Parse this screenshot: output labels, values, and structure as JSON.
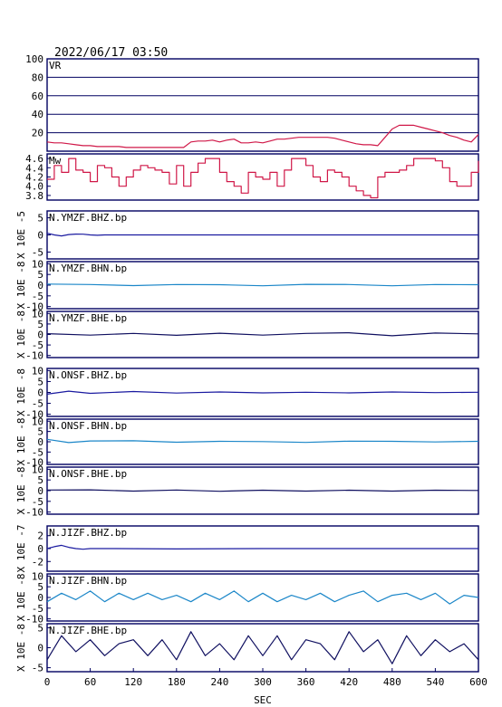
{
  "header": {
    "timestamp": "2022/06/17 03:50"
  },
  "xaxis": {
    "label": "SEC",
    "range": [
      0,
      600
    ],
    "ticks": [
      "0",
      "60",
      "120",
      "180",
      "240",
      "300",
      "360",
      "420",
      "480",
      "540",
      "600"
    ]
  },
  "colors": {
    "vr": "#d01848",
    "mw": "#d01848",
    "z": "#1a1aa0",
    "h": "#1a86c8",
    "e": "#101060",
    "frame": "#000060"
  },
  "chart_data": [
    {
      "type": "line",
      "panel_id": "vr",
      "panel_label": "VR",
      "ylim": [
        0,
        100
      ],
      "yticks": [
        "100",
        "80",
        "60",
        "40",
        "20"
      ],
      "grid": true,
      "series": [
        {
          "color_key": "vr",
          "x": [
            0,
            10,
            20,
            30,
            40,
            50,
            60,
            70,
            80,
            90,
            100,
            110,
            120,
            130,
            140,
            150,
            160,
            170,
            180,
            190,
            200,
            210,
            220,
            230,
            240,
            250,
            260,
            270,
            280,
            290,
            300,
            310,
            320,
            330,
            340,
            350,
            360,
            370,
            380,
            390,
            400,
            410,
            420,
            430,
            440,
            450,
            460,
            470,
            480,
            490,
            500,
            510,
            520,
            530,
            540,
            550,
            560,
            570,
            580,
            590,
            600
          ],
          "values": [
            10,
            9,
            9,
            8,
            7,
            6,
            6,
            5,
            5,
            5,
            5,
            4,
            4,
            4,
            4,
            4,
            4,
            4,
            4,
            4,
            10,
            11,
            11,
            12,
            10,
            12,
            13,
            9,
            9,
            10,
            9,
            11,
            13,
            13,
            14,
            15,
            15,
            15,
            15,
            15,
            14,
            12,
            10,
            8,
            7,
            7,
            6,
            15,
            24,
            28,
            28,
            28,
            26,
            24,
            22,
            20,
            17,
            15,
            12,
            10,
            18
          ]
        }
      ]
    },
    {
      "type": "line",
      "panel_id": "mw",
      "panel_label": "Mw",
      "ylim": [
        3.7,
        4.7
      ],
      "yticks": [
        "4.6",
        "4.4",
        "4.2",
        "4.0",
        "3.8"
      ],
      "grid": false,
      "series": [
        {
          "color_key": "mw",
          "x": [
            0,
            10,
            20,
            30,
            40,
            50,
            60,
            70,
            80,
            90,
            100,
            110,
            120,
            130,
            140,
            150,
            160,
            170,
            180,
            190,
            200,
            210,
            220,
            230,
            240,
            250,
            260,
            270,
            280,
            290,
            300,
            310,
            320,
            330,
            340,
            350,
            360,
            370,
            380,
            390,
            400,
            410,
            420,
            430,
            440,
            450,
            460,
            470,
            480,
            490,
            500,
            510,
            520,
            530,
            540,
            550,
            560,
            570,
            580,
            590,
            600
          ],
          "values": [
            4.15,
            4.45,
            4.3,
            4.6,
            4.35,
            4.3,
            4.1,
            4.45,
            4.4,
            4.2,
            4.0,
            4.2,
            4.35,
            4.45,
            4.4,
            4.35,
            4.3,
            4.05,
            4.45,
            4.0,
            4.3,
            4.5,
            4.6,
            4.6,
            4.3,
            4.1,
            4.0,
            3.85,
            4.3,
            4.2,
            4.15,
            4.3,
            4.0,
            4.35,
            4.6,
            4.6,
            4.45,
            4.2,
            4.1,
            4.35,
            4.3,
            4.2,
            4.0,
            3.9,
            3.8,
            3.75,
            4.2,
            4.3,
            4.3,
            4.35,
            4.45,
            4.6,
            4.6,
            4.6,
            4.55,
            4.4,
            4.1,
            4.0,
            4.0,
            4.3,
            4.55
          ]
        }
      ]
    },
    {
      "type": "line",
      "panel_id": "ymzf-bhz",
      "panel_label": "N.YMZF.BHZ.bp",
      "ylabel": "X 10E -5",
      "ylim": [
        -7,
        7
      ],
      "yticks": [
        "5",
        "0",
        "-5"
      ],
      "series": [
        {
          "color_key": "z",
          "x": [
            0,
            10,
            20,
            30,
            40,
            50,
            60,
            70,
            80,
            90,
            100,
            200,
            300,
            400,
            500,
            600
          ],
          "values": [
            0.5,
            0.0,
            -0.3,
            0.1,
            0.25,
            0.2,
            0.0,
            -0.1,
            0.0,
            0.0,
            0.0,
            0.0,
            0.0,
            0.0,
            0.0,
            0.0
          ]
        }
      ]
    },
    {
      "type": "line",
      "panel_id": "ymzf-bhn",
      "panel_label": "N.YMZF.BHN.bp",
      "ylabel": "X 10E -8",
      "ylim": [
        -11,
        11
      ],
      "yticks": [
        "10",
        "5",
        "0",
        "-5",
        "-10"
      ],
      "series": [
        {
          "color_key": "h",
          "x": [
            0,
            60,
            120,
            180,
            240,
            300,
            360,
            420,
            480,
            540,
            600
          ],
          "values": [
            0.5,
            0.3,
            -0.2,
            0.3,
            0.2,
            -0.3,
            0.4,
            0.3,
            -0.3,
            0.3,
            0.2
          ]
        }
      ]
    },
    {
      "type": "line",
      "panel_id": "ymzf-bhe",
      "panel_label": "N.YMZF.BHE.bp",
      "ylabel": "X 10E -8",
      "ylim": [
        -11,
        11
      ],
      "yticks": [
        "10",
        "5",
        "0",
        "-5",
        "-10"
      ],
      "series": [
        {
          "color_key": "e",
          "x": [
            0,
            60,
            120,
            180,
            240,
            300,
            360,
            420,
            480,
            540,
            600
          ],
          "values": [
            0.4,
            -0.3,
            0.5,
            -0.4,
            0.6,
            -0.3,
            0.5,
            0.8,
            -0.6,
            0.7,
            0.3
          ]
        }
      ]
    },
    {
      "type": "line",
      "panel_id": "onsf-bhz",
      "panel_label": "N.ONSF.BHZ.bp",
      "ylabel": "X 10E -8",
      "ylim": [
        -11,
        11
      ],
      "yticks": [
        "10",
        "5",
        "0",
        "-5",
        "-10"
      ],
      "series": [
        {
          "color_key": "z",
          "x": [
            0,
            30,
            60,
            120,
            180,
            240,
            300,
            360,
            420,
            480,
            540,
            600
          ],
          "values": [
            -0.8,
            0.6,
            -0.4,
            0.4,
            -0.3,
            0.2,
            -0.2,
            0.1,
            -0.2,
            0.2,
            -0.1,
            0.1
          ]
        }
      ]
    },
    {
      "type": "line",
      "panel_id": "onsf-bhn",
      "panel_label": "N.ONSF.BHN.bp",
      "ylabel": "X 10E -8",
      "ylim": [
        -11,
        11
      ],
      "yticks": [
        "10",
        "5",
        "0",
        "-5",
        "-10"
      ],
      "series": [
        {
          "color_key": "h",
          "x": [
            0,
            30,
            60,
            120,
            180,
            240,
            300,
            360,
            420,
            480,
            540,
            600
          ],
          "values": [
            1.2,
            -0.4,
            0.4,
            0.5,
            -0.2,
            0.2,
            0.1,
            -0.3,
            0.3,
            0.2,
            -0.1,
            0.2
          ]
        }
      ]
    },
    {
      "type": "line",
      "panel_id": "onsf-bhe",
      "panel_label": "N.ONSF.BHE.bp",
      "ylabel": "X 10E -8",
      "ylim": [
        -11,
        11
      ],
      "yticks": [
        "10",
        "5",
        "0",
        "-5",
        "-10"
      ],
      "series": [
        {
          "color_key": "e",
          "x": [
            0,
            60,
            120,
            180,
            240,
            300,
            360,
            420,
            480,
            540,
            600
          ],
          "values": [
            0.3,
            0.4,
            -0.2,
            0.3,
            -0.3,
            0.2,
            -0.2,
            0.2,
            -0.2,
            0.2,
            0.1
          ]
        }
      ]
    },
    {
      "type": "line",
      "panel_id": "jizf-bhz",
      "panel_label": "N.JIZF.BHZ.bp",
      "ylabel": "X 10E -7",
      "ylim": [
        -3.5,
        3.5
      ],
      "yticks": [
        "2",
        "0",
        "-2"
      ],
      "series": [
        {
          "color_key": "z",
          "x": [
            0,
            10,
            20,
            30,
            40,
            50,
            60,
            90,
            180,
            300,
            420,
            540,
            600
          ],
          "values": [
            0.0,
            0.3,
            0.5,
            0.2,
            0.0,
            -0.1,
            0.0,
            0.0,
            -0.05,
            0.0,
            0.0,
            0.0,
            0.0
          ]
        }
      ]
    },
    {
      "type": "line",
      "panel_id": "jizf-bhn",
      "panel_label": "N.JIZF.BHN.bp",
      "ylabel": "X 10E -8",
      "ylim": [
        -11,
        11
      ],
      "yticks": [
        "10",
        "5",
        "0",
        "-5",
        "-10"
      ],
      "series": [
        {
          "color_key": "h",
          "x": [
            0,
            20,
            40,
            60,
            80,
            100,
            120,
            140,
            160,
            180,
            200,
            220,
            240,
            260,
            280,
            300,
            320,
            340,
            360,
            380,
            400,
            420,
            440,
            460,
            480,
            500,
            520,
            540,
            560,
            580,
            600
          ],
          "values": [
            -2,
            2,
            -1,
            3,
            -2,
            2,
            -1,
            2,
            -1,
            1,
            -2,
            2,
            -1,
            3,
            -2,
            2,
            -2,
            1,
            -1,
            2,
            -2,
            1,
            3,
            -2,
            1,
            2,
            -1,
            2,
            -3,
            1,
            0
          ]
        }
      ]
    },
    {
      "type": "line",
      "panel_id": "jizf-bhe",
      "panel_label": "N.JIZF.BHE.bp",
      "ylabel": "X 10E -8",
      "ylim": [
        -6,
        6
      ],
      "yticks": [
        "5",
        "0",
        "-5"
      ],
      "series": [
        {
          "color_key": "e",
          "x": [
            0,
            20,
            40,
            60,
            80,
            100,
            120,
            140,
            160,
            180,
            200,
            220,
            240,
            260,
            280,
            300,
            320,
            340,
            360,
            380,
            400,
            420,
            440,
            460,
            480,
            500,
            520,
            540,
            560,
            580,
            600
          ],
          "values": [
            -3,
            3,
            -1,
            2,
            -2,
            1,
            2,
            -2,
            2,
            -3,
            4,
            -2,
            1,
            -3,
            3,
            -2,
            3,
            -3,
            2,
            1,
            -3,
            4,
            -1,
            2,
            -4,
            3,
            -2,
            2,
            -1,
            1,
            -3
          ]
        }
      ]
    }
  ]
}
